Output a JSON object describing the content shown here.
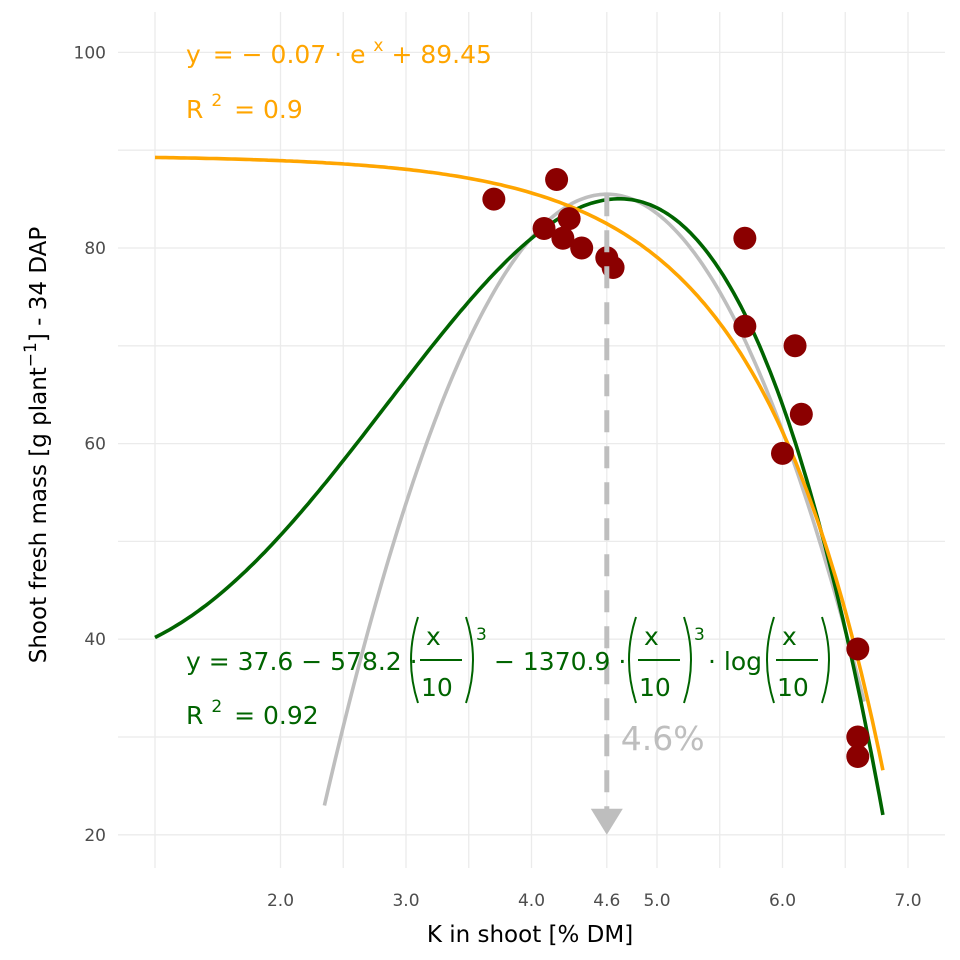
{
  "chart_data": {
    "type": "scatter",
    "title": "",
    "xlabel": "K in shoot [% DM]",
    "ylabel": "Shoot fresh mass [g plant",
    "ylabel_sup": "−1",
    "ylabel_suffix": "] - 34 DAP",
    "xlim": [
      1.05,
      7.15
    ],
    "ylim": [
      17,
      104
    ],
    "grid": true,
    "x_major_ticks": [
      2.0,
      3.0,
      4.0,
      4.6,
      5.0,
      6.0,
      7.0
    ],
    "x_tick_labels": [
      "2.0",
      "3.0",
      "4.0",
      "4.6",
      "5.0",
      "6.0",
      "7.0"
    ],
    "x_minor_gridlines": [
      1.0,
      2.0,
      2.5,
      3.0,
      3.5,
      4.0,
      4.6,
      5.0,
      5.5,
      6.0,
      6.5,
      7.0
    ],
    "y_major_ticks": [
      20,
      40,
      60,
      80,
      100
    ],
    "y_tick_labels": [
      "20",
      "40",
      "60",
      "80",
      "100"
    ],
    "y_minor_gridlines": [
      30,
      50,
      70,
      90
    ],
    "points": {
      "color": "#8b0000",
      "x": [
        3.7,
        4.1,
        4.2,
        4.25,
        4.3,
        4.4,
        4.6,
        4.65,
        5.7,
        5.7,
        6.0,
        6.1,
        6.15,
        6.6,
        6.6,
        6.6
      ],
      "y": [
        85,
        82,
        87,
        81,
        83,
        80,
        79,
        78,
        81,
        72,
        59,
        70,
        63,
        39,
        30,
        28
      ]
    },
    "series": [
      {
        "model": "exponential",
        "color": "#ffa500",
        "params": {
          "a": -0.07,
          "b": 89.45
        },
        "x_range": [
          1.0,
          6.8
        ],
        "equation_lhs": "y",
        "equation_coef": "− 0.07",
        "equation_exp_base": "e",
        "equation_exp": "x",
        "equation_const": "+ 89.45",
        "r2_label": "R",
        "r2_value": "= 0.9"
      },
      {
        "model": "cubic-log",
        "color": "#006400",
        "params": {
          "c0": 37.6,
          "c1": -578.2,
          "c2": -1370.9
        },
        "x_range": [
          1.0,
          6.8
        ],
        "equation_lhs": "y",
        "equation_c0": "37.6",
        "equation_c1": "578.2",
        "equation_c2": "1370.9",
        "equation_var": "x",
        "equation_den": "10",
        "equation_pow": "3",
        "equation_log": "log",
        "r2_label": "R",
        "r2_value": "= 0.92"
      },
      {
        "model": "quadratic",
        "color": "#bebebe",
        "vertex_x": 4.6,
        "vertex_y": 85.5,
        "x_range": [
          2.35,
          6.65
        ],
        "y_at_x_range_start": 23
      }
    ],
    "annotations": [
      {
        "type": "arrow",
        "dashed": true,
        "color": "#bebebe",
        "x": 4.6,
        "y_from": 85.5,
        "y_to": 20,
        "label": "4.6%"
      }
    ]
  }
}
